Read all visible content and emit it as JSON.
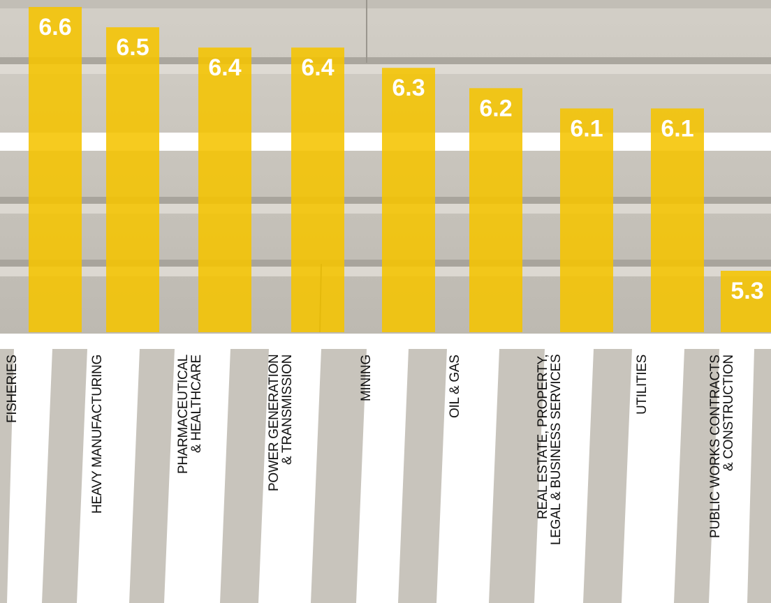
{
  "chart_data": {
    "type": "bar",
    "categories": [
      "FISHERIES",
      "HEAVY MANUFACTURING",
      "PHARMACEUTICAL\n& HEALTHCARE",
      "POWER GENERATION\n& TRANSMISSION",
      "MINING",
      "OIL & GAS",
      "REAL ESTATE, PROPERTY,\nLEGAL & BUSINESS SERVICES",
      "UTILITIES",
      "PUBLIC WORKS CONTRACTS\n& CONSTRUCTION"
    ],
    "values": [
      6.6,
      6.5,
      6.4,
      6.4,
      6.3,
      6.2,
      6.1,
      6.1,
      5.3
    ],
    "color": "#f5c400"
  }
}
